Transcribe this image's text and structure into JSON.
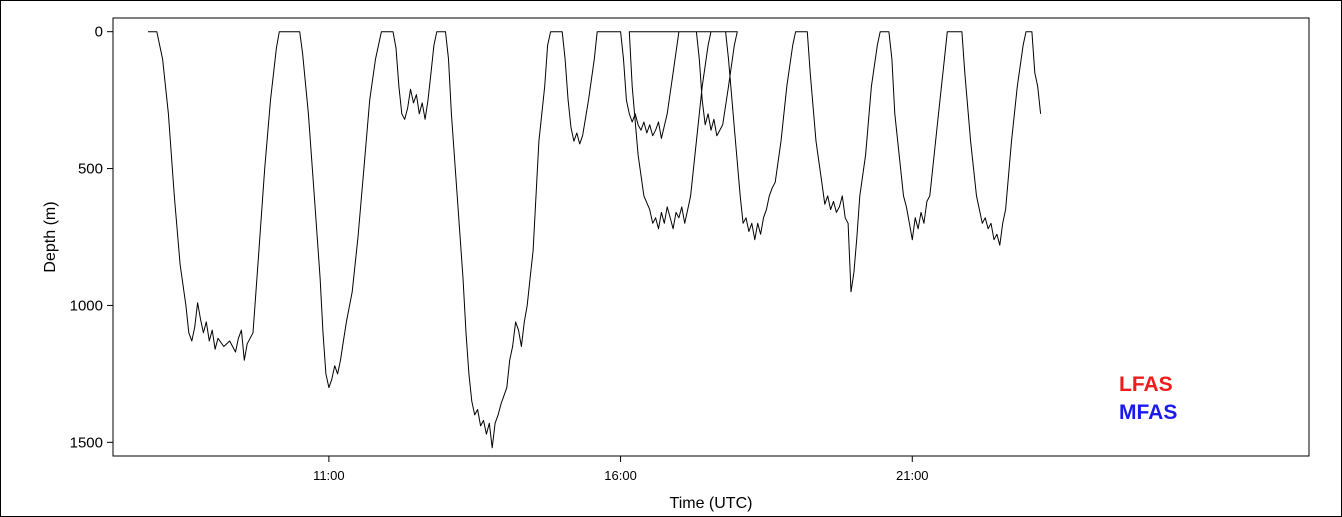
{
  "chart_data": {
    "type": "line",
    "title": "",
    "xlabel": "Time (UTC)",
    "ylabel": "Depth (m)",
    "ylim": [
      1550,
      -50
    ],
    "xlim": [
      7.3,
      27.8
    ],
    "x_ticks": [
      {
        "value": 11,
        "label": "11:00"
      },
      {
        "value": 16,
        "label": "16:00"
      },
      {
        "value": 21,
        "label": "21:00"
      }
    ],
    "y_ticks": [
      {
        "value": 0,
        "label": "0"
      },
      {
        "value": 500,
        "label": "500"
      },
      {
        "value": 1000,
        "label": "1000"
      },
      {
        "value": 1500,
        "label": "1500"
      }
    ],
    "grid": false,
    "legend": {
      "placement": "bottom-right",
      "entries": [
        {
          "label": "LFAS",
          "color": "#ee1c1c"
        },
        {
          "label": "MFAS",
          "color": "#1a1aee"
        }
      ]
    },
    "series": [
      {
        "color": "#000000",
        "points": [
          [
            7.9,
            0
          ],
          [
            8.0,
            0
          ],
          [
            8.05,
            0
          ],
          [
            8.15,
            100
          ],
          [
            8.25,
            300
          ],
          [
            8.35,
            600
          ],
          [
            8.45,
            850
          ],
          [
            8.55,
            1000
          ],
          [
            8.6,
            1100
          ],
          [
            8.65,
            1130
          ],
          [
            8.7,
            1080
          ],
          [
            8.75,
            990
          ],
          [
            8.8,
            1050
          ],
          [
            8.85,
            1100
          ],
          [
            8.9,
            1060
          ],
          [
            8.95,
            1130
          ],
          [
            9.0,
            1090
          ],
          [
            9.05,
            1160
          ],
          [
            9.1,
            1120
          ],
          [
            9.2,
            1150
          ],
          [
            9.3,
            1130
          ],
          [
            9.4,
            1170
          ],
          [
            9.45,
            1120
          ],
          [
            9.5,
            1090
          ],
          [
            9.55,
            1200
          ],
          [
            9.6,
            1140
          ],
          [
            9.7,
            1100
          ],
          [
            9.8,
            800
          ],
          [
            9.9,
            500
          ],
          [
            10.0,
            250
          ],
          [
            10.1,
            60
          ],
          [
            10.15,
            0
          ],
          [
            10.5,
            0
          ],
          [
            10.55,
            80
          ],
          [
            10.65,
            300
          ],
          [
            10.75,
            600
          ],
          [
            10.85,
            900
          ],
          [
            10.9,
            1100
          ],
          [
            10.95,
            1250
          ],
          [
            11.0,
            1300
          ],
          [
            11.05,
            1270
          ],
          [
            11.1,
            1220
          ],
          [
            11.15,
            1250
          ],
          [
            11.2,
            1200
          ],
          [
            11.25,
            1130
          ],
          [
            11.3,
            1060
          ],
          [
            11.4,
            950
          ],
          [
            11.5,
            750
          ],
          [
            11.6,
            500
          ],
          [
            11.7,
            250
          ],
          [
            11.8,
            100
          ],
          [
            11.9,
            0
          ],
          [
            12.1,
            0
          ],
          [
            12.15,
            60
          ],
          [
            12.2,
            200
          ],
          [
            12.25,
            300
          ],
          [
            12.3,
            320
          ],
          [
            12.35,
            280
          ],
          [
            12.4,
            210
          ],
          [
            12.45,
            260
          ],
          [
            12.5,
            230
          ],
          [
            12.55,
            300
          ],
          [
            12.6,
            260
          ],
          [
            12.65,
            320
          ],
          [
            12.7,
            250
          ],
          [
            12.75,
            150
          ],
          [
            12.8,
            50
          ],
          [
            12.85,
            0
          ],
          [
            13.0,
            0
          ],
          [
            13.05,
            100
          ],
          [
            13.1,
            300
          ],
          [
            13.2,
            600
          ],
          [
            13.3,
            900
          ],
          [
            13.35,
            1100
          ],
          [
            13.4,
            1250
          ],
          [
            13.45,
            1350
          ],
          [
            13.5,
            1400
          ],
          [
            13.55,
            1380
          ],
          [
            13.6,
            1440
          ],
          [
            13.65,
            1420
          ],
          [
            13.7,
            1470
          ],
          [
            13.75,
            1430
          ],
          [
            13.8,
            1520
          ],
          [
            13.85,
            1430
          ],
          [
            13.9,
            1400
          ],
          [
            13.95,
            1360
          ],
          [
            14.0,
            1330
          ],
          [
            14.05,
            1300
          ],
          [
            14.1,
            1200
          ],
          [
            14.15,
            1150
          ],
          [
            14.2,
            1060
          ],
          [
            14.25,
            1090
          ],
          [
            14.3,
            1150
          ],
          [
            14.35,
            1060
          ],
          [
            14.4,
            1000
          ],
          [
            14.45,
            900
          ],
          [
            14.5,
            800
          ],
          [
            14.55,
            600
          ],
          [
            14.6,
            400
          ],
          [
            14.7,
            200
          ],
          [
            14.75,
            50
          ],
          [
            14.8,
            0
          ],
          [
            15.0,
            0
          ],
          [
            15.05,
            100
          ],
          [
            15.1,
            250
          ],
          [
            15.15,
            350
          ],
          [
            15.2,
            400
          ],
          [
            15.25,
            370
          ],
          [
            15.3,
            410
          ],
          [
            15.35,
            380
          ],
          [
            15.45,
            250
          ],
          [
            15.55,
            100
          ],
          [
            15.6,
            0
          ],
          [
            16.0,
            0
          ],
          [
            16.05,
            100
          ],
          [
            16.1,
            250
          ],
          [
            16.15,
            300
          ],
          [
            16.2,
            330
          ],
          [
            16.25,
            300
          ],
          [
            16.3,
            340
          ],
          [
            16.35,
            360
          ],
          [
            16.4,
            330
          ],
          [
            16.45,
            370
          ],
          [
            16.5,
            340
          ],
          [
            16.55,
            380
          ],
          [
            16.6,
            360
          ],
          [
            16.65,
            330
          ],
          [
            16.7,
            390
          ],
          [
            16.8,
            300
          ],
          [
            16.9,
            150
          ],
          [
            17.0,
            0
          ],
          [
            17.3,
            0
          ],
          [
            17.35,
            100
          ],
          [
            17.4,
            250
          ],
          [
            17.45,
            340
          ],
          [
            17.5,
            300
          ],
          [
            17.55,
            360
          ],
          [
            17.6,
            320
          ],
          [
            17.65,
            380
          ],
          [
            17.7,
            360
          ],
          [
            17.75,
            340
          ],
          [
            17.85,
            200
          ],
          [
            17.95,
            50
          ],
          [
            18.0,
            0
          ],
          [
            16.15,
            0
          ],
          [
            16.2,
            200
          ],
          [
            16.3,
            450
          ],
          [
            16.4,
            600
          ],
          [
            16.5,
            650
          ],
          [
            16.55,
            700
          ],
          [
            16.6,
            680
          ],
          [
            16.65,
            720
          ],
          [
            16.7,
            660
          ],
          [
            16.75,
            700
          ],
          [
            16.8,
            640
          ],
          [
            16.85,
            680
          ],
          [
            16.9,
            720
          ],
          [
            16.95,
            660
          ],
          [
            17.0,
            680
          ],
          [
            17.05,
            640
          ],
          [
            17.1,
            700
          ],
          [
            17.15,
            650
          ],
          [
            17.2,
            600
          ],
          [
            17.3,
            400
          ],
          [
            17.4,
            200
          ],
          [
            17.5,
            50
          ],
          [
            17.55,
            0
          ],
          [
            17.8,
            0
          ],
          [
            17.85,
            100
          ],
          [
            17.95,
            350
          ],
          [
            18.05,
            600
          ],
          [
            18.1,
            700
          ],
          [
            18.15,
            680
          ],
          [
            18.2,
            730
          ],
          [
            18.25,
            700
          ],
          [
            18.3,
            760
          ],
          [
            18.35,
            700
          ],
          [
            18.4,
            740
          ],
          [
            18.45,
            680
          ],
          [
            18.5,
            650
          ],
          [
            18.55,
            600
          ],
          [
            18.6,
            570
          ],
          [
            18.65,
            550
          ],
          [
            18.75,
            400
          ],
          [
            18.85,
            200
          ],
          [
            18.95,
            50
          ],
          [
            19.0,
            0
          ],
          [
            19.2,
            0
          ],
          [
            19.25,
            150
          ],
          [
            19.35,
            400
          ],
          [
            19.45,
            550
          ],
          [
            19.5,
            630
          ],
          [
            19.55,
            600
          ],
          [
            19.6,
            650
          ],
          [
            19.65,
            620
          ],
          [
            19.7,
            660
          ],
          [
            19.75,
            640
          ],
          [
            19.8,
            600
          ],
          [
            19.85,
            680
          ],
          [
            19.9,
            700
          ],
          [
            19.95,
            950
          ],
          [
            20.0,
            880
          ],
          [
            20.05,
            750
          ],
          [
            20.1,
            600
          ],
          [
            20.2,
            450
          ],
          [
            20.3,
            200
          ],
          [
            20.4,
            50
          ],
          [
            20.45,
            0
          ],
          [
            20.6,
            0
          ],
          [
            20.65,
            100
          ],
          [
            20.7,
            300
          ],
          [
            20.75,
            400
          ],
          [
            20.8,
            500
          ],
          [
            20.85,
            600
          ],
          [
            20.9,
            640
          ],
          [
            20.95,
            700
          ],
          [
            21.0,
            760
          ],
          [
            21.05,
            680
          ],
          [
            21.1,
            720
          ],
          [
            21.15,
            660
          ],
          [
            21.2,
            700
          ],
          [
            21.25,
            620
          ],
          [
            21.3,
            600
          ],
          [
            21.35,
            500
          ],
          [
            21.45,
            300
          ],
          [
            21.55,
            100
          ],
          [
            21.6,
            0
          ],
          [
            21.85,
            0
          ],
          [
            21.9,
            150
          ],
          [
            22.0,
            400
          ],
          [
            22.1,
            600
          ],
          [
            22.15,
            650
          ],
          [
            22.2,
            700
          ],
          [
            22.25,
            680
          ],
          [
            22.3,
            720
          ],
          [
            22.35,
            700
          ],
          [
            22.4,
            760
          ],
          [
            22.45,
            740
          ],
          [
            22.5,
            780
          ],
          [
            22.55,
            700
          ],
          [
            22.6,
            650
          ],
          [
            22.7,
            400
          ],
          [
            22.8,
            200
          ],
          [
            22.9,
            50
          ],
          [
            22.95,
            0
          ],
          [
            23.05,
            0
          ],
          [
            23.1,
            150
          ],
          [
            23.15,
            200
          ],
          [
            23.2,
            300
          ]
        ]
      }
    ]
  }
}
